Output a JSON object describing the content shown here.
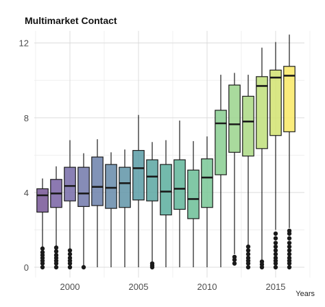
{
  "chart_data": {
    "type": "box",
    "title": "Multimarket Contact",
    "xlabel": "Years",
    "ylabel": "",
    "xlim": [
      1997.4,
      2017.1
    ],
    "ylim": [
      -0.55,
      12.65
    ],
    "x_ticks": [
      2000,
      2005,
      2010,
      2015
    ],
    "y_ticks": [
      0,
      4,
      8,
      12
    ],
    "grid": true,
    "legend": "none",
    "palette": "viridis",
    "boxes": [
      {
        "year": 1998,
        "whisker_low": 0.0,
        "q1": 2.95,
        "median": 3.85,
        "q3": 4.2,
        "whisker_high": 4.75,
        "outliers": [
          0.0,
          0.2,
          0.35,
          0.5,
          0.65,
          0.8,
          1.0
        ],
        "color": "#7b5b9a"
      },
      {
        "year": 1999,
        "whisker_low": 0.0,
        "q1": 3.2,
        "median": 3.95,
        "q3": 4.7,
        "whisker_high": 5.4,
        "outliers": [
          0.0,
          0.2,
          0.35,
          0.5,
          0.65,
          0.85,
          1.05
        ],
        "color": "#7c66a6"
      },
      {
        "year": 2000,
        "whisker_low": 0.0,
        "q1": 3.55,
        "median": 4.35,
        "q3": 5.35,
        "whisker_high": 6.8,
        "outliers": [
          0.0,
          0.2,
          0.35,
          0.5,
          0.7,
          0.9
        ],
        "color": "#7a70ab"
      },
      {
        "year": 2001,
        "whisker_low": 0.0,
        "q1": 3.25,
        "median": 3.95,
        "q3": 5.35,
        "whisker_high": 6.1,
        "outliers": [
          0.0
        ],
        "color": "#757cad"
      },
      {
        "year": 2002,
        "whisker_low": 0.0,
        "q1": 3.3,
        "median": 4.3,
        "q3": 5.9,
        "whisker_high": 6.85,
        "outliers": [],
        "color": "#7084ad"
      },
      {
        "year": 2003,
        "whisker_low": 0.0,
        "q1": 3.15,
        "median": 4.25,
        "q3": 5.5,
        "whisker_high": 6.15,
        "outliers": [],
        "color": "#6a8dac"
      },
      {
        "year": 2004,
        "whisker_low": 0.0,
        "q1": 3.2,
        "median": 4.5,
        "q3": 5.35,
        "whisker_high": 6.3,
        "outliers": [],
        "color": "#6497aa"
      },
      {
        "year": 2005,
        "whisker_low": 0.0,
        "q1": 3.6,
        "median": 5.3,
        "q3": 6.25,
        "whisker_high": 8.15,
        "outliers": [],
        "color": "#5f9fa8"
      },
      {
        "year": 2006,
        "whisker_low": 0.3,
        "q1": 3.55,
        "median": 4.85,
        "q3": 5.75,
        "whisker_high": 6.7,
        "outliers": [
          0.0,
          0.1,
          0.2
        ],
        "color": "#5ea8a4"
      },
      {
        "year": 2007,
        "whisker_low": 0.0,
        "q1": 2.8,
        "median": 4.05,
        "q3": 5.5,
        "whisker_high": 6.8,
        "outliers": [],
        "color": "#60b0a0"
      },
      {
        "year": 2008,
        "whisker_low": 0.0,
        "q1": 3.1,
        "median": 4.2,
        "q3": 5.75,
        "whisker_high": 7.85,
        "outliers": [],
        "color": "#66b89d"
      },
      {
        "year": 2009,
        "whisker_low": 0.0,
        "q1": 2.6,
        "median": 3.65,
        "q3": 5.2,
        "whisker_high": 6.75,
        "outliers": [],
        "color": "#6fc09a"
      },
      {
        "year": 2010,
        "whisker_low": 0.0,
        "q1": 3.2,
        "median": 4.8,
        "q3": 5.8,
        "whisker_high": 7.0,
        "outliers": [],
        "color": "#7cc898"
      },
      {
        "year": 2011,
        "whisker_low": 0.0,
        "q1": 4.95,
        "median": 7.7,
        "q3": 8.4,
        "whisker_high": 10.3,
        "outliers": [],
        "color": "#8ccf94"
      },
      {
        "year": 2012,
        "whisker_low": 0.7,
        "q1": 6.15,
        "median": 7.65,
        "q3": 9.75,
        "whisker_high": 10.4,
        "outliers": [
          0.2,
          0.4,
          0.55
        ],
        "color": "#9dd58f"
      },
      {
        "year": 2013,
        "whisker_low": 1.2,
        "q1": 5.95,
        "median": 7.8,
        "q3": 9.15,
        "whisker_high": 10.3,
        "outliers": [
          0.0,
          0.2,
          0.35,
          0.5,
          0.7,
          0.9,
          1.1
        ],
        "color": "#aedb88"
      },
      {
        "year": 2014,
        "whisker_low": 0.4,
        "q1": 6.35,
        "median": 9.7,
        "q3": 10.2,
        "whisker_high": 11.75,
        "outliers": [
          0.0,
          0.15,
          0.3
        ],
        "color": "#c2e07e"
      },
      {
        "year": 2015,
        "whisker_low": 2.0,
        "q1": 7.05,
        "median": 10.15,
        "q3": 10.55,
        "whisker_high": 12.05,
        "outliers": [
          0.0,
          0.2,
          0.35,
          0.5,
          0.7,
          0.9,
          1.1,
          1.3,
          1.55,
          1.8
        ],
        "color": "#d4e474"
      },
      {
        "year": 2016,
        "whisker_low": 2.1,
        "q1": 7.25,
        "median": 10.25,
        "q3": 10.75,
        "whisker_high": 12.45,
        "outliers": [
          0.0,
          0.2,
          0.35,
          0.5,
          0.7,
          0.9,
          1.1,
          1.3,
          1.55,
          1.8,
          1.95
        ],
        "color": "#f9e96a"
      }
    ]
  }
}
